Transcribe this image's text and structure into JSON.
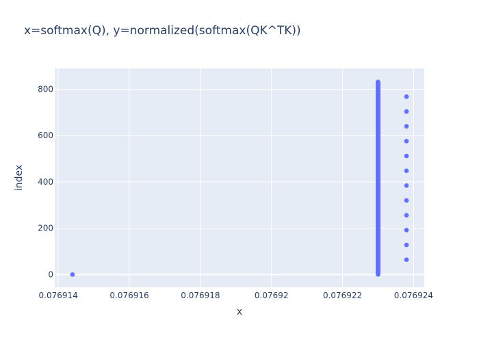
{
  "chart_data": {
    "type": "scatter",
    "title": "x=softmax(Q), y=normalized(softmax(QK^TK))",
    "xlabel": "x",
    "ylabel": "index",
    "xlim": [
      0.0769139,
      0.0769243
    ],
    "ylim": [
      -55,
      890
    ],
    "x_ticks": [
      0.076914,
      0.076916,
      0.076918,
      0.07692,
      0.076922,
      0.076924
    ],
    "x_tick_labels": [
      "0.076914",
      "0.076916",
      "0.076918",
      "0.07692",
      "0.076922",
      "0.076924"
    ],
    "y_ticks": [
      0,
      200,
      400,
      600,
      800
    ],
    "y_tick_labels": [
      "0",
      "200",
      "400",
      "600",
      "800"
    ],
    "grid": true,
    "colors": {
      "marker": "#636efa",
      "plot_bg": "#e5ecf6",
      "grid": "#ffffff",
      "text": "#2a3f5f"
    },
    "series": [
      {
        "dense_band": {
          "x": 0.076923,
          "y_from": 1,
          "y_to": 831
        },
        "points": [
          {
            "x": 0.0769144,
            "y": 0
          },
          {
            "x": 0.0769238,
            "y": 64
          },
          {
            "x": 0.0769238,
            "y": 128
          },
          {
            "x": 0.0769238,
            "y": 192
          },
          {
            "x": 0.0769238,
            "y": 256
          },
          {
            "x": 0.0769238,
            "y": 320
          },
          {
            "x": 0.0769238,
            "y": 384
          },
          {
            "x": 0.0769238,
            "y": 448
          },
          {
            "x": 0.0769238,
            "y": 512
          },
          {
            "x": 0.0769238,
            "y": 576
          },
          {
            "x": 0.0769238,
            "y": 640
          },
          {
            "x": 0.0769238,
            "y": 704
          },
          {
            "x": 0.0769238,
            "y": 768
          }
        ]
      }
    ]
  }
}
